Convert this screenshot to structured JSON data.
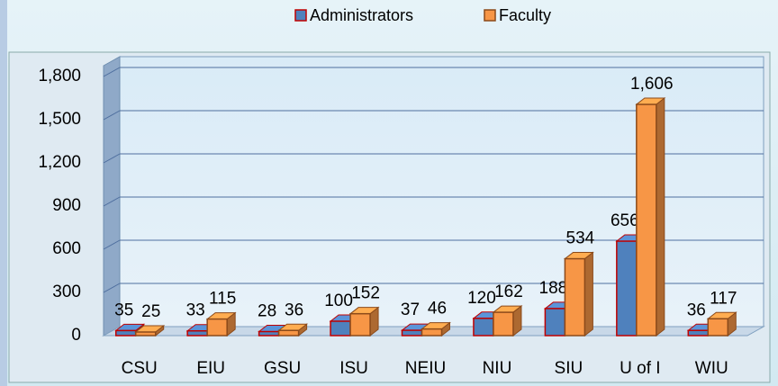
{
  "chart_data": {
    "type": "bar3d",
    "categories": [
      "CSU",
      "EIU",
      "GSU",
      "ISU",
      "NEIU",
      "NIU",
      "SIU",
      "U of I",
      "WIU"
    ],
    "series": [
      {
        "name": "Administrators",
        "color": "#4f81bd",
        "values": [
          35,
          33,
          28,
          100,
          37,
          120,
          188,
          656,
          36
        ]
      },
      {
        "name": "Faculty",
        "color": "#f79646",
        "values": [
          25,
          115,
          36,
          152,
          46,
          162,
          534,
          1606,
          117
        ]
      }
    ],
    "value_labels": [
      [
        "35",
        "33",
        "28",
        "100",
        "37",
        "120",
        "188",
        "656",
        "36"
      ],
      [
        "25",
        "115",
        "36",
        "152",
        "46",
        "162",
        "534",
        "1,606",
        "117"
      ]
    ],
    "ylim": [
      0,
      1800
    ],
    "yticks": [
      0,
      300,
      600,
      900,
      {
        "value": 1200,
        "label": "1,200"
      },
      {
        "value": 1500,
        "label": "1,500"
      },
      {
        "value": 1800,
        "label": "1,800"
      }
    ],
    "grid": true,
    "legend": "top"
  }
}
